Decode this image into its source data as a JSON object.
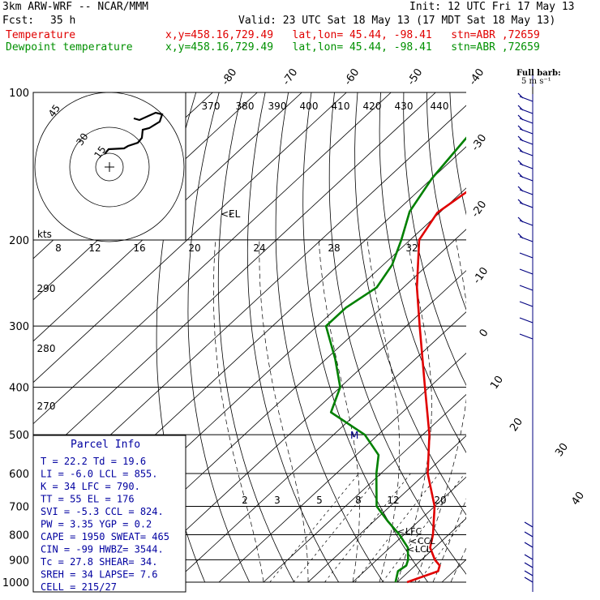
{
  "header": {
    "model_title": "3km ARW-WRF -- NCAR/MMM",
    "init_text": "Init: 12 UTC Fri 17 May 13",
    "fcst_label": "Fcst:",
    "fcst_value": "35 h",
    "valid_text": "Valid: 23 UTC Sat 18 May 13 (17 MDT Sat 18 May 13)",
    "temp_label": "Temperature",
    "temp_loc": "x,y=458.16,729.49   lat,lon= 45.44, -98.41   stn=ABR ,72659",
    "dew_label": "Dewpoint temperature",
    "dew_loc": "x,y=458.16,729.49   lat,lon= 45.44, -98.41   stn=ABR ,72659"
  },
  "colors": {
    "temperature": "#e00000",
    "dewpoint": "#008000",
    "parcel_text": "#0000a0",
    "isobar": "#000000",
    "wind": "#000080"
  },
  "barb_legend": {
    "title": "Full barb:",
    "value": "5 m s⁻¹"
  },
  "parcel_info": {
    "title": "Parcel Info",
    "rows": [
      [
        "T    =",
        "22.2",
        "Td  =",
        "19.6"
      ],
      [
        "LI   =",
        "-6.0",
        "LCL =",
        "855."
      ],
      [
        "K    =",
        "34",
        "LFC =",
        "790."
      ],
      [
        "TT   =",
        "55",
        "EL  =",
        "176"
      ],
      [
        "SVI  =",
        "-5.3",
        "CCL =",
        "824."
      ],
      [
        "PW   =",
        "3.35",
        "YGP =",
        "0.2"
      ],
      [
        "CAPE =",
        "1950",
        "SWEAT=",
        "465"
      ],
      [
        "CIN  =",
        "-99",
        "HWBZ=",
        "3544."
      ],
      [
        "Tc   =",
        "27.8",
        "SHEAR=",
        "34."
      ],
      [
        "SREH =",
        "34",
        "LAPSE=",
        "7.6"
      ],
      [
        "CELL =",
        "215/27",
        "",
        ""
      ]
    ]
  },
  "hodograph": {
    "unit": "kts",
    "ring_labels": [
      "45",
      "30",
      "15"
    ]
  },
  "level_labels": {
    "el": "EL",
    "lfc": "LFC",
    "ccl": "CCL",
    "lcl": "LCL",
    "m": "M"
  },
  "chart_data": {
    "type": "line",
    "subtype": "skew-T log-P sounding",
    "y_axis": {
      "pressure_ticks": [
        100,
        200,
        300,
        400,
        500,
        600,
        700,
        800,
        900,
        1000
      ],
      "scale": "log"
    },
    "isotherm_labels": [
      -80,
      -70,
      -60,
      -50,
      -40,
      -30,
      -20,
      -10,
      0,
      10,
      20,
      30,
      40
    ],
    "theta_labels": [
      370,
      380,
      390,
      400,
      410,
      420,
      430,
      440
    ],
    "theta_left_labels": [
      290,
      280,
      270
    ],
    "mixing_ratio_labels_upper": [
      8,
      12,
      16,
      20,
      24,
      28,
      32
    ],
    "mixing_ratio_labels_lower": [
      2,
      3,
      5,
      8,
      12,
      20
    ],
    "series": [
      {
        "name": "Temperature",
        "points": [
          [
            1000,
            22.2
          ],
          [
            950,
            26.5
          ],
          [
            925,
            25.5
          ],
          [
            900,
            23.0
          ],
          [
            850,
            19.0
          ],
          [
            800,
            16.5
          ],
          [
            700,
            10.0
          ],
          [
            600,
            0.5
          ],
          [
            500,
            -8.5
          ],
          [
            400,
            -21.0
          ],
          [
            300,
            -37.0
          ],
          [
            250,
            -47.0
          ],
          [
            200,
            -58.0
          ],
          [
            176,
            -60.5
          ],
          [
            150,
            -58.0
          ],
          [
            125,
            -55.0
          ],
          [
            110,
            -53.0
          ],
          [
            100,
            -51.0
          ]
        ]
      },
      {
        "name": "Dewpoint temperature",
        "points": [
          [
            1000,
            19.6
          ],
          [
            950,
            17.5
          ],
          [
            925,
            18.0
          ],
          [
            900,
            17.0
          ],
          [
            850,
            14.0
          ],
          [
            800,
            9.0
          ],
          [
            750,
            3.0
          ],
          [
            700,
            -3.0
          ],
          [
            600,
            -11.0
          ],
          [
            550,
            -15.0
          ],
          [
            500,
            -23.0
          ],
          [
            450,
            -36.0
          ],
          [
            400,
            -40.0
          ],
          [
            350,
            -48.0
          ],
          [
            300,
            -58.0
          ],
          [
            275,
            -58.0
          ],
          [
            250,
            -56.0
          ],
          [
            225,
            -58.0
          ],
          [
            200,
            -62.0
          ],
          [
            175,
            -67.0
          ],
          [
            150,
            -70.0
          ],
          [
            125,
            -72.0
          ],
          [
            100,
            -74.0
          ]
        ]
      }
    ]
  }
}
